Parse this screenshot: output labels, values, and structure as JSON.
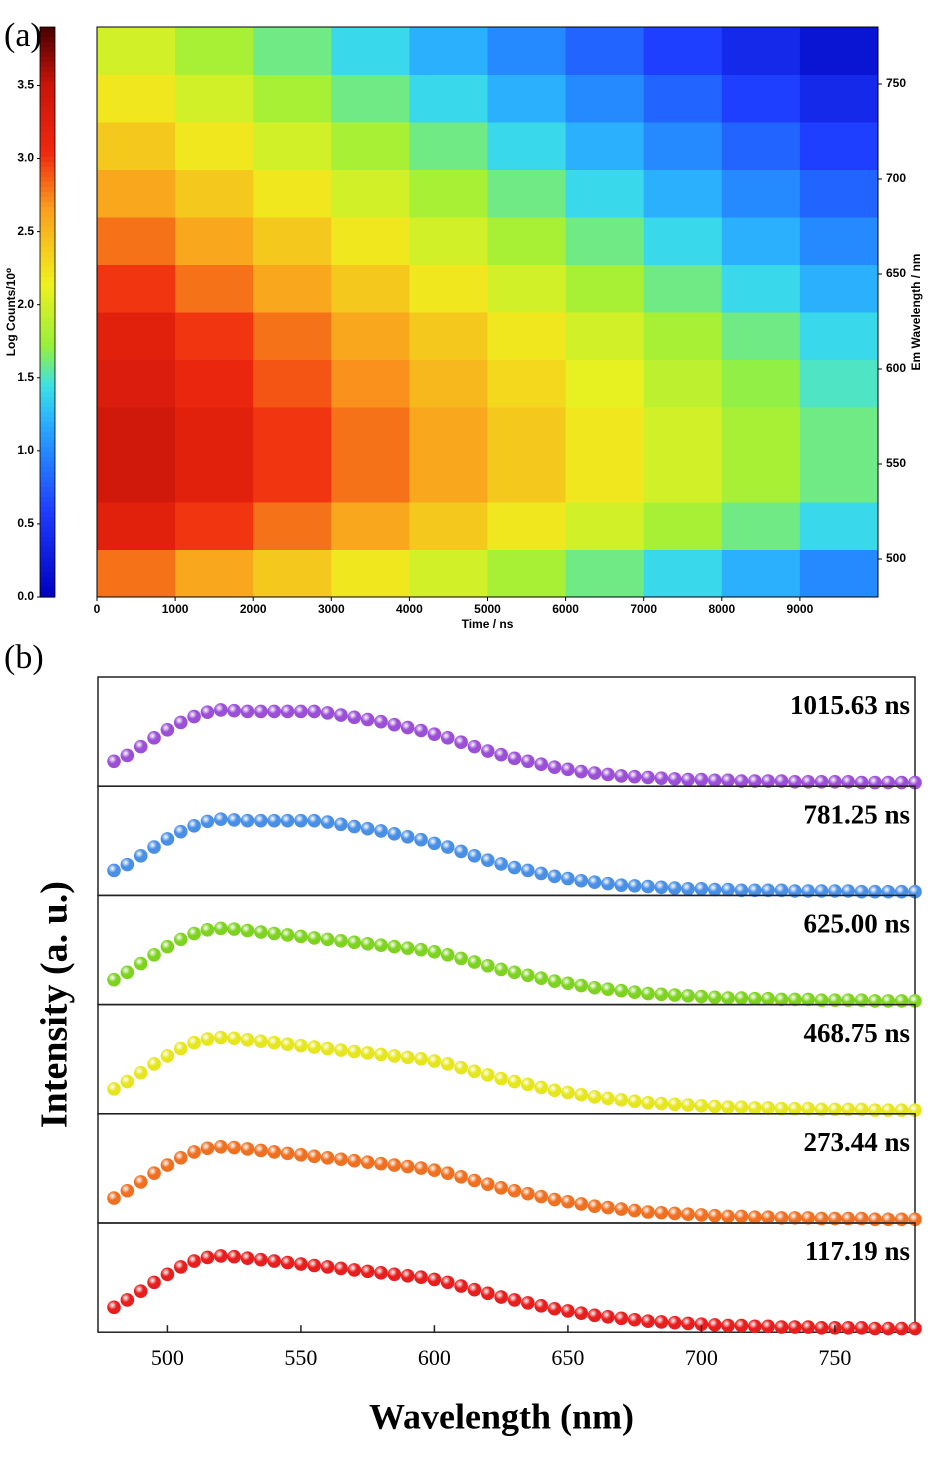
{
  "chart_data": [
    {
      "type": "heatmap",
      "panel_label": "(a)",
      "x_label": "Time / ns",
      "y2_label": "Em Wavelength / nm",
      "colorbar_label": "Log Counts/10⁰",
      "xlim": [
        0,
        10000
      ],
      "xticks": [
        0,
        1000,
        2000,
        3000,
        4000,
        5000,
        6000,
        7000,
        8000,
        9000
      ],
      "ylim": [
        480,
        780
      ],
      "y2ticks": [
        500,
        550,
        600,
        650,
        700,
        750
      ],
      "zlim": [
        0,
        3.9
      ],
      "zticks": [
        {
          "value": 0,
          "label": "0.0"
        },
        {
          "value": 0.5,
          "label": "0.5"
        },
        {
          "value": 1,
          "label": "1.0"
        },
        {
          "value": 1.5,
          "label": "1.5"
        },
        {
          "value": 2,
          "label": "2.0"
        },
        {
          "value": 2.5,
          "label": "2.5"
        },
        {
          "value": 3,
          "label": "3.0"
        },
        {
          "value": 3.5,
          "label": "3.5"
        }
      ],
      "x_bins": [
        0,
        1000,
        2000,
        3000,
        4000,
        5000,
        6000,
        7000,
        8000,
        9000,
        10000
      ],
      "y_bins": [
        480,
        505,
        530,
        555,
        580,
        605,
        630,
        655,
        680,
        705,
        730,
        755,
        780
      ],
      "z": [
        [
          2.8,
          2.6,
          2.4,
          2.2,
          2.0,
          1.8,
          1.6,
          1.4,
          1.2,
          1.0
        ],
        [
          3.2,
          3.0,
          2.8,
          2.6,
          2.4,
          2.2,
          2.0,
          1.8,
          1.6,
          1.4
        ],
        [
          3.4,
          3.2,
          3.0,
          2.8,
          2.6,
          2.4,
          2.2,
          2.0,
          1.8,
          1.6
        ],
        [
          3.4,
          3.2,
          3.0,
          2.8,
          2.6,
          2.4,
          2.2,
          2.0,
          1.8,
          1.6
        ],
        [
          3.3,
          3.1,
          2.9,
          2.7,
          2.5,
          2.3,
          2.1,
          1.9,
          1.7,
          1.5
        ],
        [
          3.2,
          3.0,
          2.8,
          2.6,
          2.4,
          2.2,
          2.0,
          1.8,
          1.6,
          1.4
        ],
        [
          3.0,
          2.8,
          2.6,
          2.4,
          2.2,
          2.0,
          1.8,
          1.6,
          1.4,
          1.2
        ],
        [
          2.8,
          2.6,
          2.4,
          2.2,
          2.0,
          1.8,
          1.6,
          1.4,
          1.2,
          1.0
        ],
        [
          2.6,
          2.4,
          2.2,
          2.0,
          1.8,
          1.6,
          1.4,
          1.2,
          1.0,
          0.8
        ],
        [
          2.4,
          2.2,
          2.0,
          1.8,
          1.6,
          1.4,
          1.2,
          1.0,
          0.8,
          0.6
        ],
        [
          2.2,
          2.0,
          1.8,
          1.6,
          1.4,
          1.2,
          1.0,
          0.8,
          0.6,
          0.4
        ],
        [
          2.0,
          1.8,
          1.6,
          1.4,
          1.2,
          1.0,
          0.8,
          0.6,
          0.4,
          0.2
        ]
      ]
    },
    {
      "type": "scatter",
      "panel_label": "(b)",
      "x_label": "Wavelength (nm)",
      "y_label": "Intensity (a. u.)",
      "xlim": [
        474,
        780
      ],
      "xticks": [
        500,
        550,
        600,
        650,
        700,
        750
      ],
      "ylim": [
        -0.04,
        1.45
      ],
      "x": [
        480,
        485,
        490,
        495,
        500,
        505,
        510,
        515,
        520,
        525,
        530,
        535,
        540,
        545,
        550,
        555,
        560,
        565,
        570,
        575,
        580,
        585,
        590,
        595,
        600,
        605,
        610,
        615,
        620,
        625,
        630,
        635,
        640,
        645,
        650,
        655,
        660,
        665,
        670,
        675,
        680,
        685,
        690,
        695,
        700,
        705,
        710,
        715,
        720,
        725,
        730,
        735,
        740,
        745,
        750,
        755,
        760,
        765,
        770,
        775,
        780
      ],
      "series": [
        {
          "name": "1015.63 ns",
          "color": "#9b4fd6",
          "values": [
            0.3,
            0.38,
            0.5,
            0.62,
            0.73,
            0.83,
            0.91,
            0.97,
            1.0,
            0.99,
            0.98,
            0.98,
            0.98,
            0.98,
            0.98,
            0.98,
            0.96,
            0.93,
            0.9,
            0.87,
            0.84,
            0.8,
            0.76,
            0.72,
            0.67,
            0.62,
            0.56,
            0.5,
            0.44,
            0.39,
            0.34,
            0.3,
            0.26,
            0.22,
            0.19,
            0.16,
            0.14,
            0.12,
            0.1,
            0.09,
            0.08,
            0.07,
            0.06,
            0.05,
            0.05,
            0.04,
            0.04,
            0.03,
            0.03,
            0.03,
            0.03,
            0.02,
            0.02,
            0.02,
            0.02,
            0.02,
            0.01,
            0.01,
            0.01,
            0.01,
            0.01
          ]
        },
        {
          "name": "781.25 ns",
          "color": "#4a8fe6",
          "values": [
            0.3,
            0.38,
            0.5,
            0.62,
            0.73,
            0.83,
            0.91,
            0.97,
            1.0,
            0.99,
            0.98,
            0.98,
            0.98,
            0.98,
            0.98,
            0.98,
            0.96,
            0.93,
            0.9,
            0.87,
            0.84,
            0.8,
            0.76,
            0.72,
            0.67,
            0.62,
            0.56,
            0.5,
            0.44,
            0.39,
            0.34,
            0.3,
            0.26,
            0.22,
            0.19,
            0.16,
            0.14,
            0.12,
            0.1,
            0.09,
            0.08,
            0.07,
            0.06,
            0.05,
            0.05,
            0.04,
            0.04,
            0.03,
            0.03,
            0.03,
            0.03,
            0.02,
            0.02,
            0.02,
            0.02,
            0.02,
            0.01,
            0.01,
            0.01,
            0.01,
            0.01
          ]
        },
        {
          "name": "625.00 ns",
          "color": "#7ed321",
          "values": [
            0.3,
            0.4,
            0.52,
            0.64,
            0.75,
            0.85,
            0.93,
            0.98,
            1.0,
            0.99,
            0.97,
            0.95,
            0.93,
            0.91,
            0.89,
            0.87,
            0.85,
            0.83,
            0.81,
            0.79,
            0.77,
            0.75,
            0.73,
            0.71,
            0.68,
            0.64,
            0.59,
            0.54,
            0.49,
            0.44,
            0.4,
            0.36,
            0.32,
            0.28,
            0.25,
            0.22,
            0.19,
            0.17,
            0.15,
            0.13,
            0.11,
            0.1,
            0.09,
            0.08,
            0.07,
            0.06,
            0.05,
            0.05,
            0.04,
            0.04,
            0.03,
            0.03,
            0.03,
            0.02,
            0.02,
            0.02,
            0.02,
            0.01,
            0.01,
            0.01,
            0.01
          ]
        },
        {
          "name": "468.75 ns",
          "color": "#e6e61e",
          "values": [
            0.3,
            0.4,
            0.52,
            0.64,
            0.75,
            0.85,
            0.93,
            0.98,
            1.0,
            0.99,
            0.97,
            0.95,
            0.93,
            0.91,
            0.89,
            0.87,
            0.85,
            0.83,
            0.81,
            0.79,
            0.77,
            0.75,
            0.73,
            0.71,
            0.68,
            0.64,
            0.59,
            0.54,
            0.49,
            0.44,
            0.4,
            0.36,
            0.32,
            0.28,
            0.25,
            0.22,
            0.19,
            0.17,
            0.15,
            0.13,
            0.11,
            0.1,
            0.09,
            0.08,
            0.07,
            0.06,
            0.05,
            0.05,
            0.04,
            0.04,
            0.03,
            0.03,
            0.03,
            0.02,
            0.02,
            0.02,
            0.02,
            0.01,
            0.01,
            0.01,
            0.01
          ]
        },
        {
          "name": "273.44 ns",
          "color": "#f07022",
          "values": [
            0.3,
            0.4,
            0.52,
            0.64,
            0.75,
            0.85,
            0.93,
            0.98,
            1.0,
            0.99,
            0.97,
            0.95,
            0.93,
            0.91,
            0.89,
            0.87,
            0.85,
            0.83,
            0.81,
            0.79,
            0.77,
            0.75,
            0.73,
            0.71,
            0.68,
            0.64,
            0.59,
            0.54,
            0.49,
            0.44,
            0.4,
            0.36,
            0.32,
            0.28,
            0.25,
            0.22,
            0.19,
            0.17,
            0.15,
            0.13,
            0.11,
            0.1,
            0.09,
            0.08,
            0.07,
            0.06,
            0.05,
            0.05,
            0.04,
            0.04,
            0.03,
            0.03,
            0.03,
            0.02,
            0.02,
            0.02,
            0.02,
            0.01,
            0.01,
            0.01,
            0.01
          ]
        },
        {
          "name": "117.19 ns",
          "color": "#e81e1e",
          "values": [
            0.3,
            0.4,
            0.52,
            0.64,
            0.75,
            0.85,
            0.93,
            0.98,
            1.0,
            0.99,
            0.97,
            0.95,
            0.93,
            0.91,
            0.89,
            0.87,
            0.85,
            0.83,
            0.81,
            0.79,
            0.77,
            0.75,
            0.73,
            0.71,
            0.68,
            0.64,
            0.59,
            0.54,
            0.49,
            0.44,
            0.4,
            0.36,
            0.32,
            0.28,
            0.25,
            0.22,
            0.19,
            0.17,
            0.15,
            0.13,
            0.11,
            0.1,
            0.09,
            0.08,
            0.07,
            0.06,
            0.05,
            0.05,
            0.04,
            0.04,
            0.03,
            0.03,
            0.03,
            0.02,
            0.02,
            0.02,
            0.02,
            0.01,
            0.01,
            0.01,
            0.01
          ]
        }
      ]
    }
  ]
}
